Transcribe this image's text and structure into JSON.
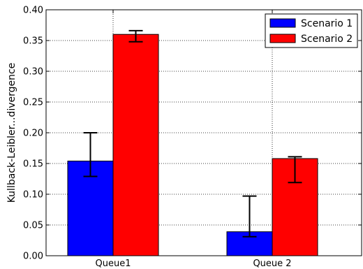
{
  "chart_data": {
    "type": "bar",
    "title": "",
    "xlabel": "",
    "ylabel": "Kullback-Leibler...divergence",
    "categories": [
      "Queue1",
      "Queue 2"
    ],
    "ylim": [
      0,
      0.4
    ],
    "yticks": [
      "0.00",
      "0.05",
      "0.10",
      "0.15",
      "0.20",
      "0.25",
      "0.30",
      "0.35",
      "0.40"
    ],
    "grid": true,
    "legend_position": "top-right",
    "series": [
      {
        "name": "Scenario 1",
        "color": "#0000ff",
        "values": [
          0.154,
          0.039
        ],
        "error_low": [
          0.129,
          0.031
        ],
        "error_high": [
          0.2,
          0.097
        ]
      },
      {
        "name": "Scenario 2",
        "color": "#ff0000",
        "values": [
          0.36,
          0.158
        ],
        "error_low": [
          0.348,
          0.119
        ],
        "error_high": [
          0.366,
          0.161
        ]
      }
    ]
  }
}
